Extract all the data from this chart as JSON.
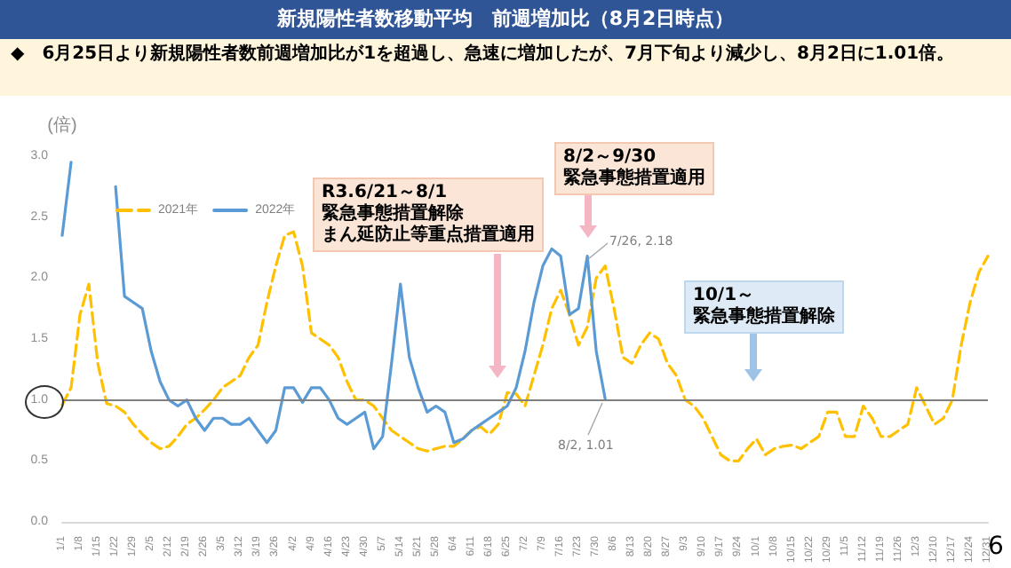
{
  "chart_data": {
    "type": "line",
    "title": "新規陽性者数移動平均　前週増加比（8月2日時点）",
    "subtitle": "◆　6月25日より新規陽性者数前週増加比が1を超過し、急速に増加したが、7月下旬より減少し、8月2日に1.01倍。",
    "ylabel": "(倍)",
    "annotations": [
      "R3.6/21～8/1",
      "緊急事態措置解除",
      "まん延防止等重点措置適用",
      "8/2～9/30",
      "緊急事態措置適用",
      "10/1～",
      "緊急事態措置解除",
      "7/26, 2.18",
      "8/2, 1.01",
      "6"
    ],
    "categories": [
      "1/1",
      null,
      "1/8",
      null,
      "1/15",
      null,
      "1/22",
      null,
      "1/29",
      null,
      "2/5",
      null,
      "2/12",
      null,
      "2/19",
      null,
      "2/26",
      null,
      "3/5",
      null,
      "3/12",
      null,
      "3/19",
      null,
      "3/26",
      null,
      "4/2",
      null,
      "4/9",
      null,
      "4/16",
      null,
      "4/23",
      null,
      "4/30",
      null,
      "5/7",
      null,
      "5/14",
      null,
      "5/21",
      null,
      "5/28",
      null,
      "6/4",
      null,
      "6/11",
      null,
      "6/18",
      null,
      "6/25",
      null,
      "7/2",
      null,
      "7/9",
      null,
      "7/16",
      null,
      "7/23",
      null,
      "7/30",
      null,
      "8/6",
      null,
      "8/13",
      null,
      "8/20",
      null,
      "8/27",
      null,
      "9/3",
      null,
      "9/10",
      null,
      "9/17",
      null,
      "9/24",
      null,
      "10/1",
      null,
      "10/8",
      null,
      "10/15",
      null,
      "10/22",
      null,
      "10/29",
      null,
      "11/5",
      null,
      "11/12",
      null,
      "11/19",
      null,
      "11/26",
      null,
      "12/3",
      null,
      "12/10",
      null,
      "12/17",
      null,
      "12/24",
      null,
      "12/31"
    ],
    "series": [
      {
        "name": "2021年",
        "color": "#ffc000",
        "line_style": "dashed",
        "values": [
          0.96,
          1.1,
          1.7,
          1.95,
          1.3,
          0.97,
          0.95,
          0.9,
          0.8,
          0.72,
          0.65,
          0.6,
          0.62,
          0.7,
          0.8,
          0.85,
          0.92,
          1.0,
          1.1,
          1.15,
          1.2,
          1.35,
          1.45,
          1.8,
          2.1,
          2.35,
          2.38,
          2.1,
          1.55,
          1.5,
          1.45,
          1.35,
          1.15,
          1.0,
          1.0,
          0.95,
          0.85,
          0.75,
          0.7,
          0.65,
          0.6,
          0.58,
          0.6,
          0.62,
          0.62,
          0.68,
          0.75,
          0.78,
          0.72,
          0.8,
          1.06,
          1.05,
          0.95,
          1.2,
          1.45,
          1.75,
          1.9,
          1.7,
          1.45,
          1.6,
          2.0,
          2.1,
          1.75,
          1.35,
          1.3,
          1.45,
          1.55,
          1.5,
          1.3,
          1.2,
          1.0,
          0.95,
          0.85,
          0.7,
          0.55,
          0.5,
          0.5,
          0.6,
          0.68,
          0.55,
          0.6,
          0.62,
          0.63,
          0.6,
          0.65,
          0.7,
          0.9,
          0.9,
          0.7,
          0.7,
          0.95,
          0.85,
          0.7,
          0.7,
          0.75,
          0.8,
          1.1,
          0.95,
          0.8,
          0.85,
          1.0,
          1.45,
          1.8,
          2.05,
          2.18
        ]
      },
      {
        "name": "2022年",
        "color": "#5b9bd5",
        "line_style": "solid",
        "values": [
          2.35,
          2.95,
          null,
          null,
          null,
          null,
          2.75,
          1.85,
          1.8,
          1.75,
          1.4,
          1.15,
          1.0,
          0.95,
          1.0,
          0.85,
          0.75,
          0.85,
          0.85,
          0.8,
          0.8,
          0.85,
          0.75,
          0.65,
          0.75,
          1.1,
          1.1,
          0.98,
          1.1,
          1.1,
          1.0,
          0.85,
          0.8,
          0.85,
          0.9,
          0.6,
          0.7,
          1.3,
          1.95,
          1.35,
          1.1,
          0.9,
          0.95,
          0.9,
          0.65,
          0.68,
          0.75,
          0.8,
          0.85,
          0.9,
          0.95,
          1.1,
          1.4,
          1.8,
          2.1,
          2.24,
          2.18,
          1.7,
          1.75,
          2.18,
          1.4,
          1.01,
          null,
          null,
          null,
          null,
          null,
          null,
          null,
          null,
          null,
          null,
          null,
          null,
          null,
          null,
          null,
          null,
          null,
          null,
          null,
          null,
          null,
          null,
          null,
          null,
          null,
          null,
          null,
          null,
          null,
          null,
          null,
          null,
          null,
          null,
          null,
          null,
          null,
          null,
          null,
          null,
          null,
          null,
          null
        ]
      }
    ],
    "ylim": [
      0,
      3
    ],
    "yticks": [
      {
        "value": 0,
        "label": "0.0"
      },
      {
        "value": 0.5,
        "label": "0.5"
      },
      {
        "value": 1,
        "label": "1.0"
      },
      {
        "value": 1.5,
        "label": "1.5"
      },
      {
        "value": 2,
        "label": "2.0"
      },
      {
        "value": 2.5,
        "label": "2.5"
      },
      {
        "value": 3,
        "label": "3.0"
      }
    ],
    "ref_lines": [
      {
        "axis": "y",
        "value": 1,
        "color": "#808080"
      }
    ],
    "legend": "top left",
    "marker": "none"
  }
}
